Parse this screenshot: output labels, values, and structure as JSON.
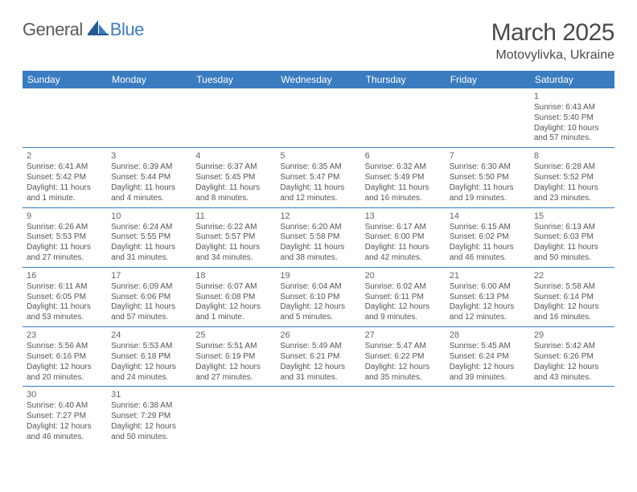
{
  "logo": {
    "part1": "General",
    "part2": "Blue"
  },
  "title": "March 2025",
  "location": "Motovylivka, Ukraine",
  "colors": {
    "header_bg": "#3b7cc0",
    "header_fg": "#ffffff",
    "row_border": "#3b7cc0",
    "logo_gray": "#5a5a5a",
    "logo_blue": "#3c7cc0"
  },
  "day_headers": [
    "Sunday",
    "Monday",
    "Tuesday",
    "Wednesday",
    "Thursday",
    "Friday",
    "Saturday"
  ],
  "weeks": [
    [
      null,
      null,
      null,
      null,
      null,
      null,
      {
        "n": "1",
        "sunrise": "Sunrise: 6:43 AM",
        "sunset": "Sunset: 5:40 PM",
        "daylight": "Daylight: 10 hours and 57 minutes."
      }
    ],
    [
      {
        "n": "2",
        "sunrise": "Sunrise: 6:41 AM",
        "sunset": "Sunset: 5:42 PM",
        "daylight": "Daylight: 11 hours and 1 minute."
      },
      {
        "n": "3",
        "sunrise": "Sunrise: 6:39 AM",
        "sunset": "Sunset: 5:44 PM",
        "daylight": "Daylight: 11 hours and 4 minutes."
      },
      {
        "n": "4",
        "sunrise": "Sunrise: 6:37 AM",
        "sunset": "Sunset: 5:45 PM",
        "daylight": "Daylight: 11 hours and 8 minutes."
      },
      {
        "n": "5",
        "sunrise": "Sunrise: 6:35 AM",
        "sunset": "Sunset: 5:47 PM",
        "daylight": "Daylight: 11 hours and 12 minutes."
      },
      {
        "n": "6",
        "sunrise": "Sunrise: 6:32 AM",
        "sunset": "Sunset: 5:49 PM",
        "daylight": "Daylight: 11 hours and 16 minutes."
      },
      {
        "n": "7",
        "sunrise": "Sunrise: 6:30 AM",
        "sunset": "Sunset: 5:50 PM",
        "daylight": "Daylight: 11 hours and 19 minutes."
      },
      {
        "n": "8",
        "sunrise": "Sunrise: 6:28 AM",
        "sunset": "Sunset: 5:52 PM",
        "daylight": "Daylight: 11 hours and 23 minutes."
      }
    ],
    [
      {
        "n": "9",
        "sunrise": "Sunrise: 6:26 AM",
        "sunset": "Sunset: 5:53 PM",
        "daylight": "Daylight: 11 hours and 27 minutes."
      },
      {
        "n": "10",
        "sunrise": "Sunrise: 6:24 AM",
        "sunset": "Sunset: 5:55 PM",
        "daylight": "Daylight: 11 hours and 31 minutes."
      },
      {
        "n": "11",
        "sunrise": "Sunrise: 6:22 AM",
        "sunset": "Sunset: 5:57 PM",
        "daylight": "Daylight: 11 hours and 34 minutes."
      },
      {
        "n": "12",
        "sunrise": "Sunrise: 6:20 AM",
        "sunset": "Sunset: 5:58 PM",
        "daylight": "Daylight: 11 hours and 38 minutes."
      },
      {
        "n": "13",
        "sunrise": "Sunrise: 6:17 AM",
        "sunset": "Sunset: 6:00 PM",
        "daylight": "Daylight: 11 hours and 42 minutes."
      },
      {
        "n": "14",
        "sunrise": "Sunrise: 6:15 AM",
        "sunset": "Sunset: 6:02 PM",
        "daylight": "Daylight: 11 hours and 46 minutes."
      },
      {
        "n": "15",
        "sunrise": "Sunrise: 6:13 AM",
        "sunset": "Sunset: 6:03 PM",
        "daylight": "Daylight: 11 hours and 50 minutes."
      }
    ],
    [
      {
        "n": "16",
        "sunrise": "Sunrise: 6:11 AM",
        "sunset": "Sunset: 6:05 PM",
        "daylight": "Daylight: 11 hours and 53 minutes."
      },
      {
        "n": "17",
        "sunrise": "Sunrise: 6:09 AM",
        "sunset": "Sunset: 6:06 PM",
        "daylight": "Daylight: 11 hours and 57 minutes."
      },
      {
        "n": "18",
        "sunrise": "Sunrise: 6:07 AM",
        "sunset": "Sunset: 6:08 PM",
        "daylight": "Daylight: 12 hours and 1 minute."
      },
      {
        "n": "19",
        "sunrise": "Sunrise: 6:04 AM",
        "sunset": "Sunset: 6:10 PM",
        "daylight": "Daylight: 12 hours and 5 minutes."
      },
      {
        "n": "20",
        "sunrise": "Sunrise: 6:02 AM",
        "sunset": "Sunset: 6:11 PM",
        "daylight": "Daylight: 12 hours and 9 minutes."
      },
      {
        "n": "21",
        "sunrise": "Sunrise: 6:00 AM",
        "sunset": "Sunset: 6:13 PM",
        "daylight": "Daylight: 12 hours and 12 minutes."
      },
      {
        "n": "22",
        "sunrise": "Sunrise: 5:58 AM",
        "sunset": "Sunset: 6:14 PM",
        "daylight": "Daylight: 12 hours and 16 minutes."
      }
    ],
    [
      {
        "n": "23",
        "sunrise": "Sunrise: 5:56 AM",
        "sunset": "Sunset: 6:16 PM",
        "daylight": "Daylight: 12 hours and 20 minutes."
      },
      {
        "n": "24",
        "sunrise": "Sunrise: 5:53 AM",
        "sunset": "Sunset: 6:18 PM",
        "daylight": "Daylight: 12 hours and 24 minutes."
      },
      {
        "n": "25",
        "sunrise": "Sunrise: 5:51 AM",
        "sunset": "Sunset: 6:19 PM",
        "daylight": "Daylight: 12 hours and 27 minutes."
      },
      {
        "n": "26",
        "sunrise": "Sunrise: 5:49 AM",
        "sunset": "Sunset: 6:21 PM",
        "daylight": "Daylight: 12 hours and 31 minutes."
      },
      {
        "n": "27",
        "sunrise": "Sunrise: 5:47 AM",
        "sunset": "Sunset: 6:22 PM",
        "daylight": "Daylight: 12 hours and 35 minutes."
      },
      {
        "n": "28",
        "sunrise": "Sunrise: 5:45 AM",
        "sunset": "Sunset: 6:24 PM",
        "daylight": "Daylight: 12 hours and 39 minutes."
      },
      {
        "n": "29",
        "sunrise": "Sunrise: 5:42 AM",
        "sunset": "Sunset: 6:26 PM",
        "daylight": "Daylight: 12 hours and 43 minutes."
      }
    ],
    [
      {
        "n": "30",
        "sunrise": "Sunrise: 6:40 AM",
        "sunset": "Sunset: 7:27 PM",
        "daylight": "Daylight: 12 hours and 46 minutes."
      },
      {
        "n": "31",
        "sunrise": "Sunrise: 6:38 AM",
        "sunset": "Sunset: 7:29 PM",
        "daylight": "Daylight: 12 hours and 50 minutes."
      },
      null,
      null,
      null,
      null,
      null
    ]
  ]
}
